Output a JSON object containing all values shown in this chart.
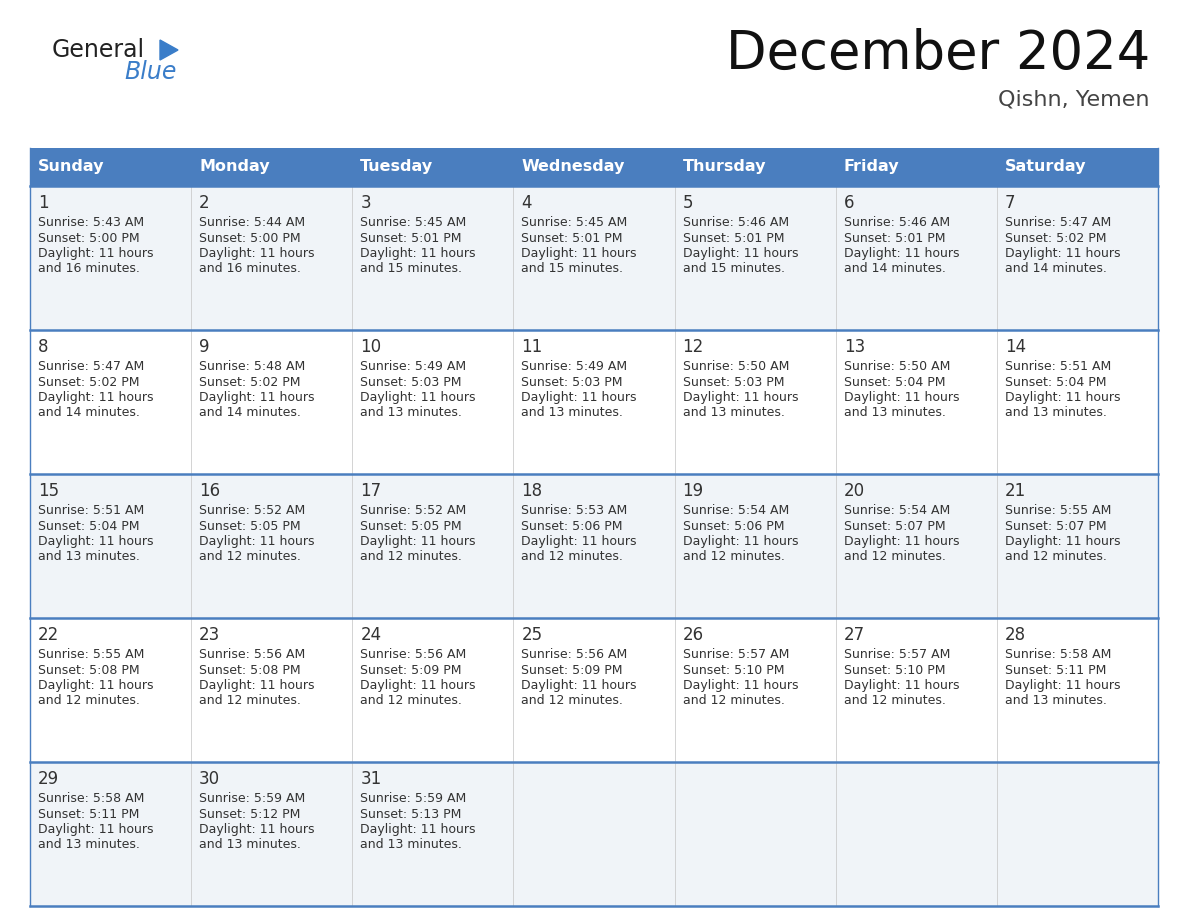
{
  "title": "December 2024",
  "subtitle": "Qishn, Yemen",
  "header_color": "#4a7ebf",
  "header_text_color": "#FFFFFF",
  "cell_bg_even": "#f0f4f8",
  "cell_bg_odd": "#FFFFFF",
  "cell_text_color": "#333333",
  "border_color": "#4a7ebf",
  "grid_color": "#bbbbbb",
  "days_of_week": [
    "Sunday",
    "Monday",
    "Tuesday",
    "Wednesday",
    "Thursday",
    "Friday",
    "Saturday"
  ],
  "calendar": [
    [
      {
        "day": 1,
        "sunrise": "5:43 AM",
        "sunset": "5:00 PM",
        "daylight_hours": 11,
        "daylight_minutes": 16
      },
      {
        "day": 2,
        "sunrise": "5:44 AM",
        "sunset": "5:00 PM",
        "daylight_hours": 11,
        "daylight_minutes": 16
      },
      {
        "day": 3,
        "sunrise": "5:45 AM",
        "sunset": "5:01 PM",
        "daylight_hours": 11,
        "daylight_minutes": 15
      },
      {
        "day": 4,
        "sunrise": "5:45 AM",
        "sunset": "5:01 PM",
        "daylight_hours": 11,
        "daylight_minutes": 15
      },
      {
        "day": 5,
        "sunrise": "5:46 AM",
        "sunset": "5:01 PM",
        "daylight_hours": 11,
        "daylight_minutes": 15
      },
      {
        "day": 6,
        "sunrise": "5:46 AM",
        "sunset": "5:01 PM",
        "daylight_hours": 11,
        "daylight_minutes": 14
      },
      {
        "day": 7,
        "sunrise": "5:47 AM",
        "sunset": "5:02 PM",
        "daylight_hours": 11,
        "daylight_minutes": 14
      }
    ],
    [
      {
        "day": 8,
        "sunrise": "5:47 AM",
        "sunset": "5:02 PM",
        "daylight_hours": 11,
        "daylight_minutes": 14
      },
      {
        "day": 9,
        "sunrise": "5:48 AM",
        "sunset": "5:02 PM",
        "daylight_hours": 11,
        "daylight_minutes": 14
      },
      {
        "day": 10,
        "sunrise": "5:49 AM",
        "sunset": "5:03 PM",
        "daylight_hours": 11,
        "daylight_minutes": 13
      },
      {
        "day": 11,
        "sunrise": "5:49 AM",
        "sunset": "5:03 PM",
        "daylight_hours": 11,
        "daylight_minutes": 13
      },
      {
        "day": 12,
        "sunrise": "5:50 AM",
        "sunset": "5:03 PM",
        "daylight_hours": 11,
        "daylight_minutes": 13
      },
      {
        "day": 13,
        "sunrise": "5:50 AM",
        "sunset": "5:04 PM",
        "daylight_hours": 11,
        "daylight_minutes": 13
      },
      {
        "day": 14,
        "sunrise": "5:51 AM",
        "sunset": "5:04 PM",
        "daylight_hours": 11,
        "daylight_minutes": 13
      }
    ],
    [
      {
        "day": 15,
        "sunrise": "5:51 AM",
        "sunset": "5:04 PM",
        "daylight_hours": 11,
        "daylight_minutes": 13
      },
      {
        "day": 16,
        "sunrise": "5:52 AM",
        "sunset": "5:05 PM",
        "daylight_hours": 11,
        "daylight_minutes": 12
      },
      {
        "day": 17,
        "sunrise": "5:52 AM",
        "sunset": "5:05 PM",
        "daylight_hours": 11,
        "daylight_minutes": 12
      },
      {
        "day": 18,
        "sunrise": "5:53 AM",
        "sunset": "5:06 PM",
        "daylight_hours": 11,
        "daylight_minutes": 12
      },
      {
        "day": 19,
        "sunrise": "5:54 AM",
        "sunset": "5:06 PM",
        "daylight_hours": 11,
        "daylight_minutes": 12
      },
      {
        "day": 20,
        "sunrise": "5:54 AM",
        "sunset": "5:07 PM",
        "daylight_hours": 11,
        "daylight_minutes": 12
      },
      {
        "day": 21,
        "sunrise": "5:55 AM",
        "sunset": "5:07 PM",
        "daylight_hours": 11,
        "daylight_minutes": 12
      }
    ],
    [
      {
        "day": 22,
        "sunrise": "5:55 AM",
        "sunset": "5:08 PM",
        "daylight_hours": 11,
        "daylight_minutes": 12
      },
      {
        "day": 23,
        "sunrise": "5:56 AM",
        "sunset": "5:08 PM",
        "daylight_hours": 11,
        "daylight_minutes": 12
      },
      {
        "day": 24,
        "sunrise": "5:56 AM",
        "sunset": "5:09 PM",
        "daylight_hours": 11,
        "daylight_minutes": 12
      },
      {
        "day": 25,
        "sunrise": "5:56 AM",
        "sunset": "5:09 PM",
        "daylight_hours": 11,
        "daylight_minutes": 12
      },
      {
        "day": 26,
        "sunrise": "5:57 AM",
        "sunset": "5:10 PM",
        "daylight_hours": 11,
        "daylight_minutes": 12
      },
      {
        "day": 27,
        "sunrise": "5:57 AM",
        "sunset": "5:10 PM",
        "daylight_hours": 11,
        "daylight_minutes": 12
      },
      {
        "day": 28,
        "sunrise": "5:58 AM",
        "sunset": "5:11 PM",
        "daylight_hours": 11,
        "daylight_minutes": 13
      }
    ],
    [
      {
        "day": 29,
        "sunrise": "5:58 AM",
        "sunset": "5:11 PM",
        "daylight_hours": 11,
        "daylight_minutes": 13
      },
      {
        "day": 30,
        "sunrise": "5:59 AM",
        "sunset": "5:12 PM",
        "daylight_hours": 11,
        "daylight_minutes": 13
      },
      {
        "day": 31,
        "sunrise": "5:59 AM",
        "sunset": "5:13 PM",
        "daylight_hours": 11,
        "daylight_minutes": 13
      },
      null,
      null,
      null,
      null
    ]
  ]
}
